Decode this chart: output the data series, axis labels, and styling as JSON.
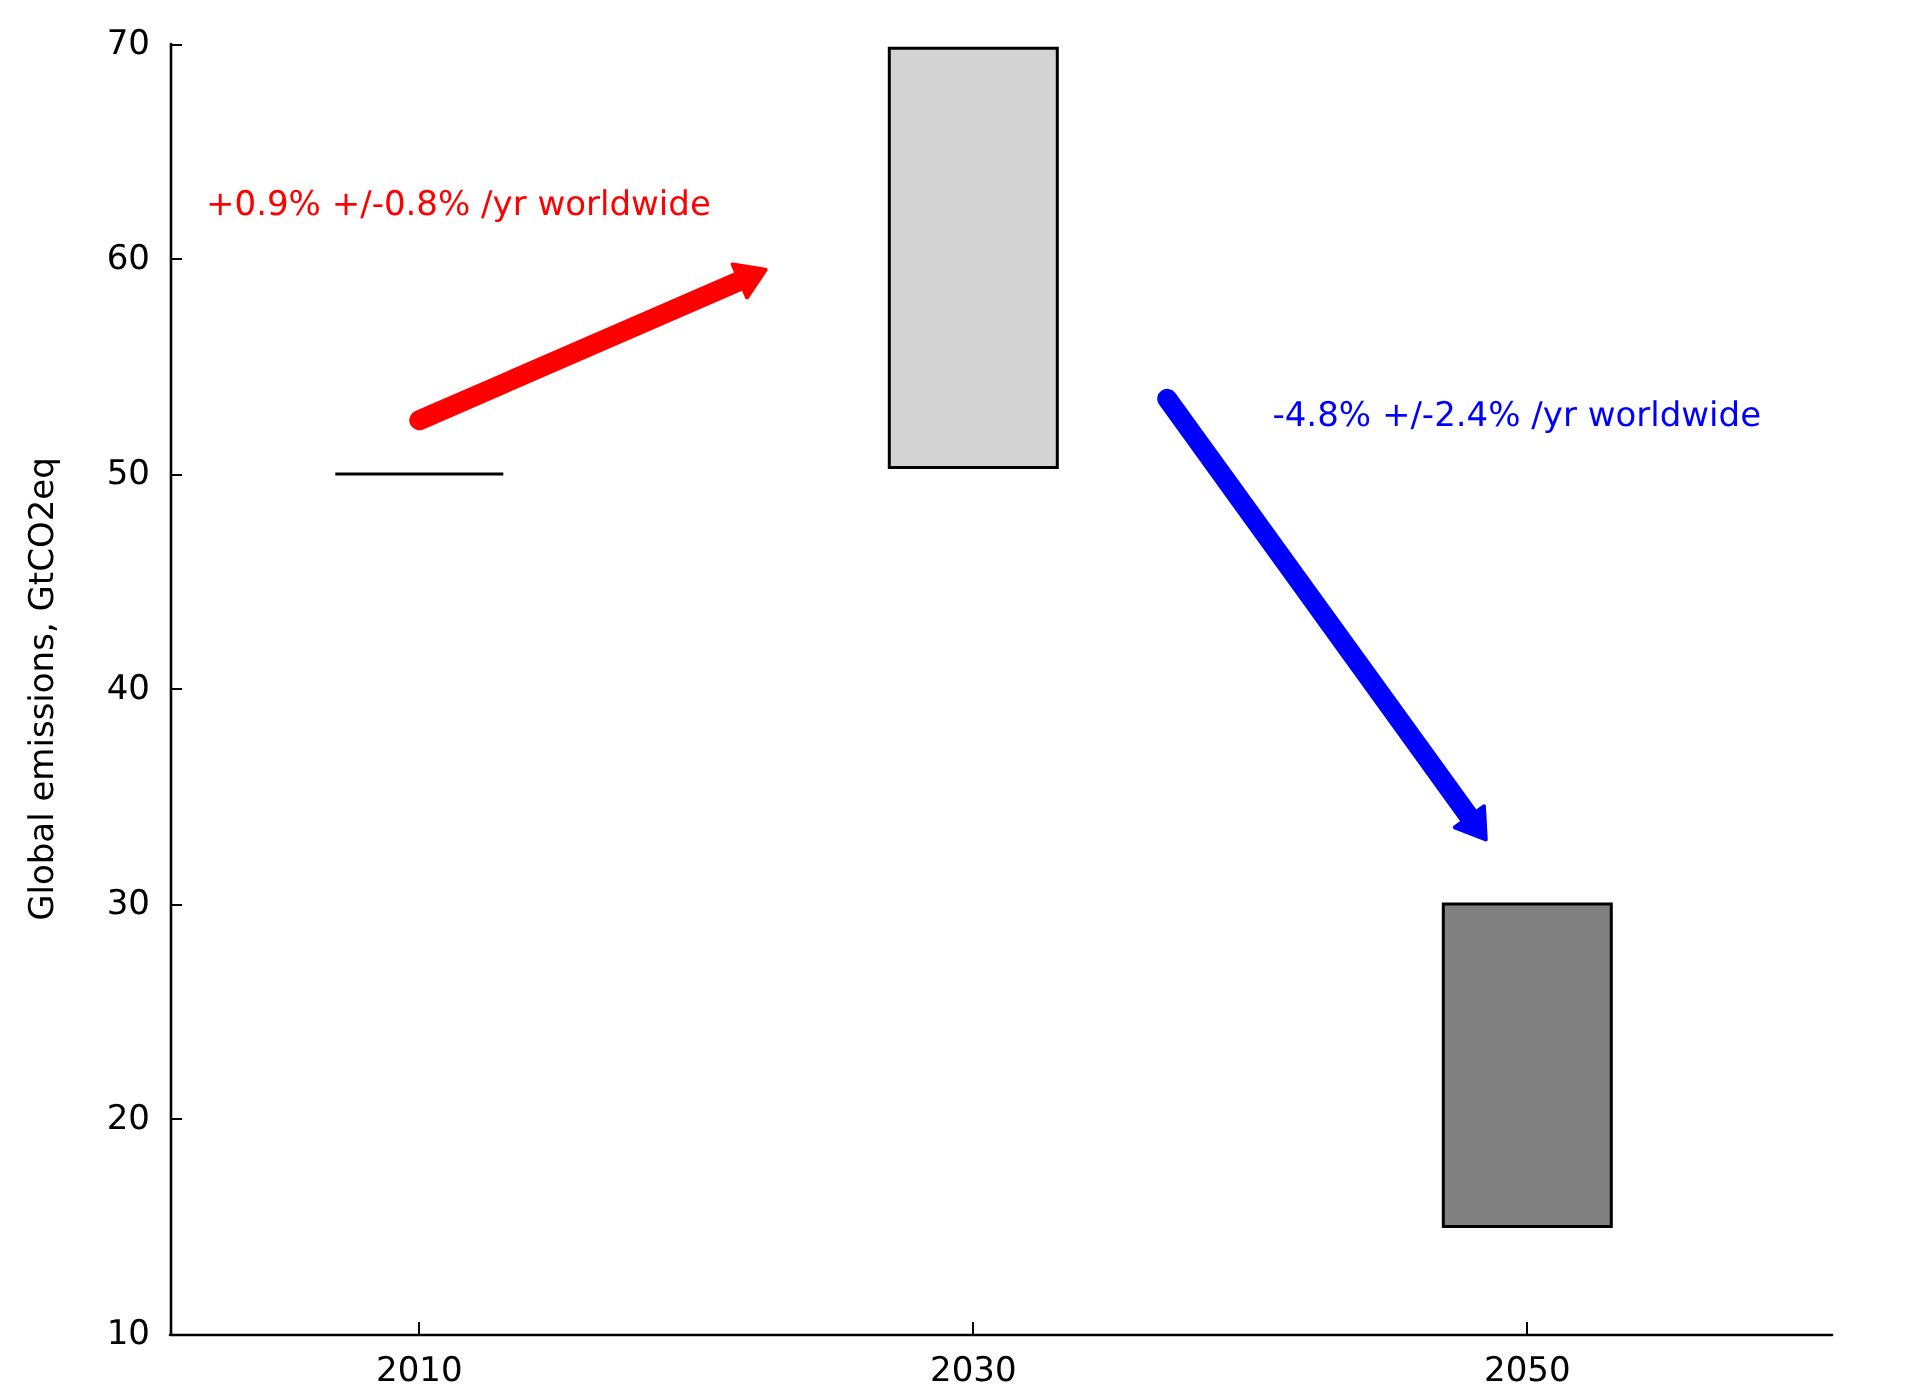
{
  "chart_data": {
    "type": "bar",
    "ylabel": "Global emissions, GtCO2eq",
    "x": [
      2010,
      2030,
      2050
    ],
    "base": [
      50,
      50.3,
      15
    ],
    "values": [
      0,
      19.5,
      15
    ],
    "colors": [
      "#000000",
      "#d3d3d3",
      "#808080"
    ],
    "xlim": [
      2001,
      2061
    ],
    "xticks": [
      2010,
      2030,
      2050
    ],
    "ylim": [
      10,
      70
    ],
    "yticks": [
      10,
      20,
      30,
      40,
      50,
      60,
      70
    ],
    "grid": false,
    "annotations": [
      "+0.9% +/-0.8% /yr worldwide",
      "-4.8% +/-2.4% /yr worldwide"
    ]
  }
}
